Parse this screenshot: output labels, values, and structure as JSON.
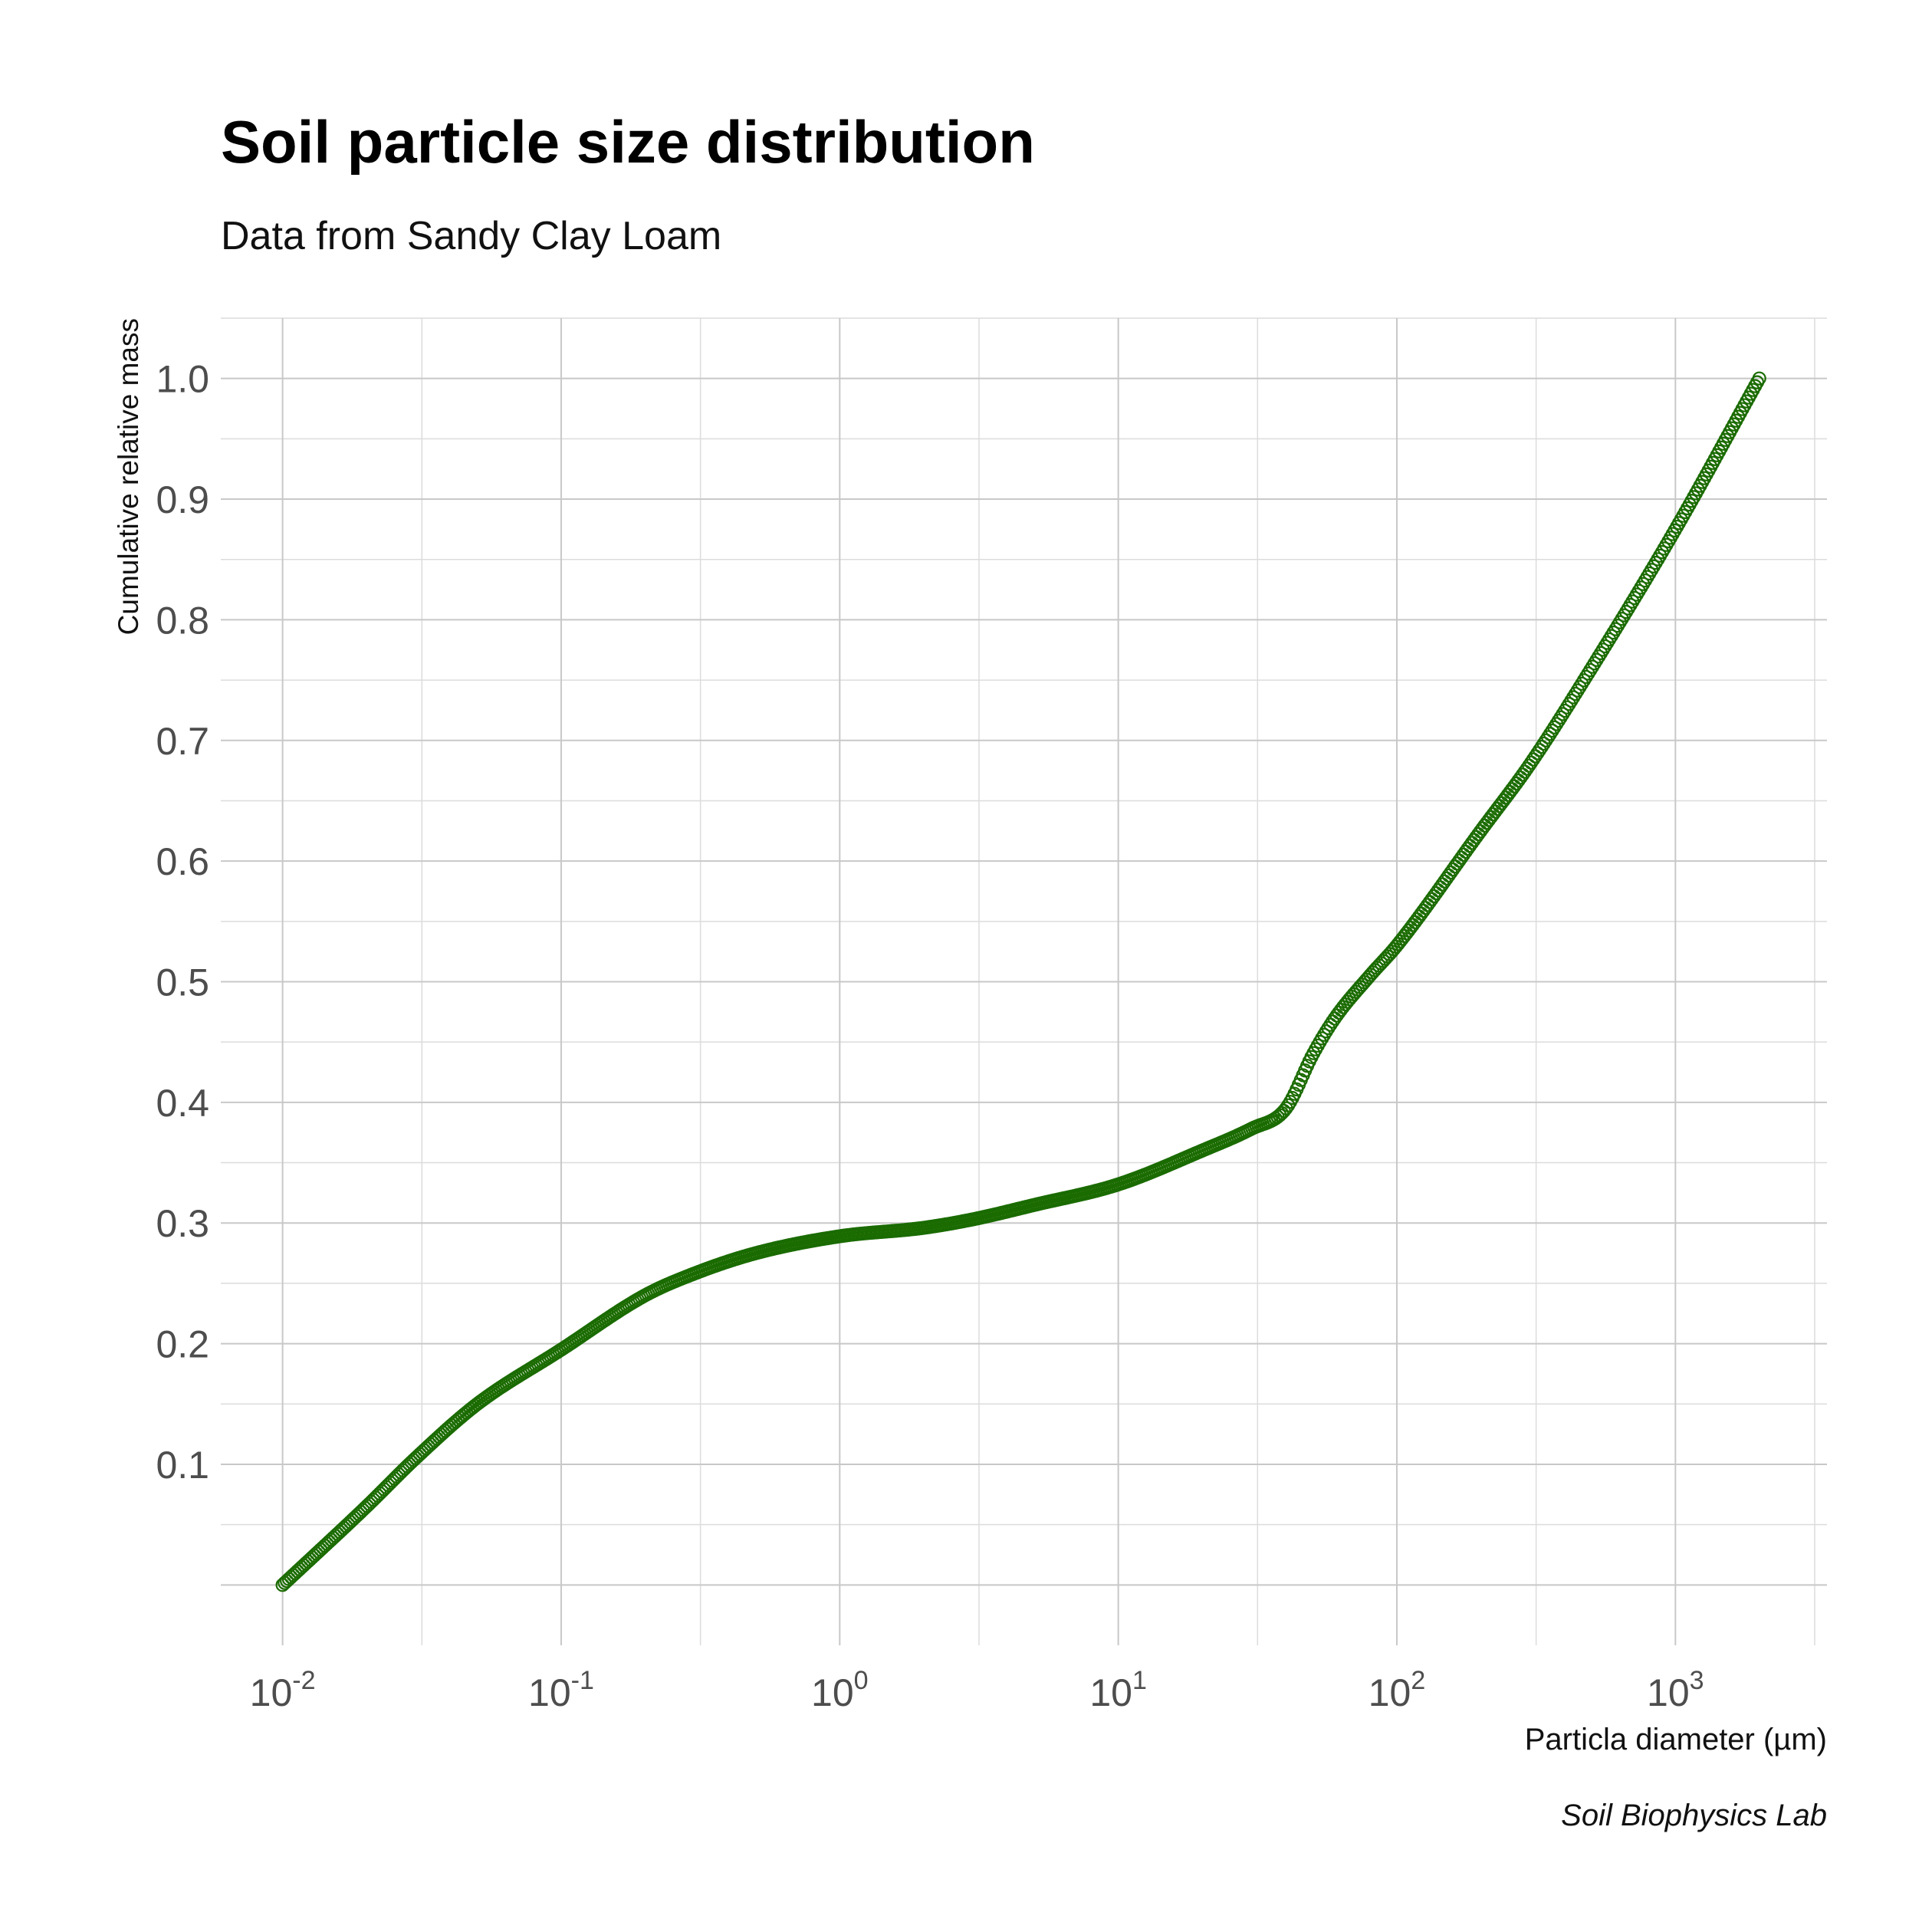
{
  "chart_data": {
    "type": "scatter",
    "title": "Soil particle size distribution",
    "subtitle": "Data from Sandy Clay Loam",
    "xlabel": "Particla diameter (µm)",
    "ylabel": "Cumulative relative mass",
    "caption": "Soil Biophysics Lab",
    "x_scale": "log10",
    "xlim": [
      0.006,
      3500
    ],
    "ylim": [
      -0.05,
      1.05
    ],
    "x_ticks": [
      {
        "value": 0.01,
        "base": "10",
        "exp": "-2"
      },
      {
        "value": 0.1,
        "base": "10",
        "exp": "-1"
      },
      {
        "value": 1,
        "base": "10",
        "exp": "0"
      },
      {
        "value": 10,
        "base": "10",
        "exp": "1"
      },
      {
        "value": 100,
        "base": "10",
        "exp": "2"
      },
      {
        "value": 1000,
        "base": "10",
        "exp": "3"
      }
    ],
    "y_ticks": [
      {
        "value": 0.1,
        "label": "0.1"
      },
      {
        "value": 0.2,
        "label": "0.2"
      },
      {
        "value": 0.3,
        "label": "0.3"
      },
      {
        "value": 0.4,
        "label": "0.4"
      },
      {
        "value": 0.5,
        "label": "0.5"
      },
      {
        "value": 0.6,
        "label": "0.6"
      },
      {
        "value": 0.7,
        "label": "0.7"
      },
      {
        "value": 0.8,
        "label": "0.8"
      },
      {
        "value": 0.9,
        "label": "0.9"
      },
      {
        "value": 1.0,
        "label": "1.0"
      }
    ],
    "grid": true,
    "legend": "none",
    "point_color": "#1a6b00",
    "point_fill": "none",
    "x": [
      0.01,
      0.02,
      0.03,
      0.05,
      0.1,
      0.2,
      0.3,
      0.5,
      1,
      2,
      3,
      5,
      10,
      20,
      30,
      40,
      50,
      60,
      80,
      100,
      200,
      300,
      500,
      1000,
      2000
    ],
    "y": [
      0.0,
      0.065,
      0.105,
      0.15,
      0.195,
      0.24,
      0.258,
      0.275,
      0.289,
      0.296,
      0.303,
      0.315,
      0.332,
      0.36,
      0.378,
      0.395,
      0.44,
      0.47,
      0.505,
      0.53,
      0.625,
      0.68,
      0.76,
      0.875,
      1.0
    ]
  }
}
